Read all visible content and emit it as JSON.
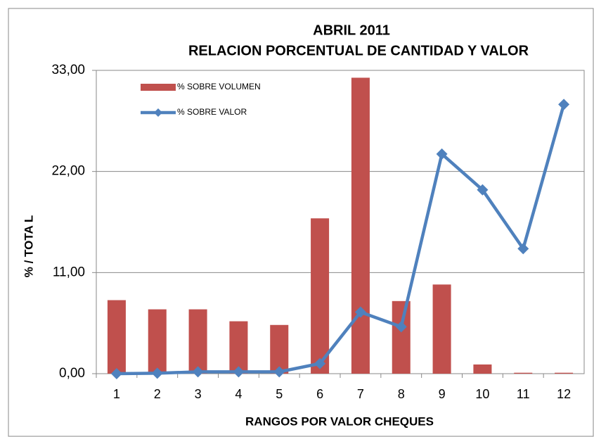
{
  "chart_data": {
    "type": "bar_line",
    "title": "ABRIL 2011",
    "subtitle": "RELACION PORCENTUAL  DE CANTIDAD  Y VALOR",
    "x_label": "RANGOS POR VALOR CHEQUES",
    "y_label": "%  /    TOTA L",
    "categories": [
      "1",
      "2",
      "3",
      "4",
      "5",
      "6",
      "7",
      "8",
      "9",
      "10",
      "11",
      "12"
    ],
    "series": [
      {
        "name": "% SOBRE  VOLUMEN",
        "kind": "bar",
        "color": "#c0504d",
        "values": [
          8.0,
          7.0,
          7.0,
          5.7,
          5.3,
          16.9,
          32.2,
          7.9,
          9.7,
          1.0,
          0.1,
          0.1
        ]
      },
      {
        "name": "% SOBRE  VALOR",
        "kind": "line",
        "color": "#4f81bd",
        "values": [
          0.0,
          0.05,
          0.2,
          0.2,
          0.2,
          1.1,
          6.7,
          5.1,
          23.9,
          20.0,
          13.6,
          29.3
        ]
      }
    ],
    "ylim": [
      0,
      33
    ],
    "yticks": [
      {
        "value": 0,
        "label": "0,00"
      },
      {
        "value": 11,
        "label": "11,00"
      },
      {
        "value": 22,
        "label": "22,00"
      },
      {
        "value": 33,
        "label": "33,00"
      }
    ],
    "grid": true,
    "legend": "top-left"
  }
}
